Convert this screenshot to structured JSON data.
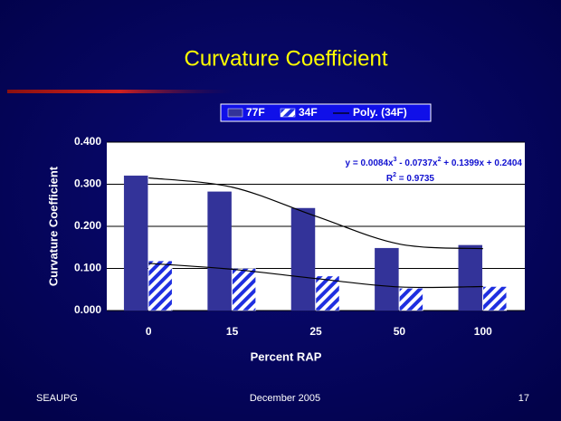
{
  "chart_data": {
    "type": "bar",
    "title": "Curvature Coefficient",
    "x_label": "Percent RAP",
    "y_label": "Curvature Coefficient",
    "categories": [
      "0",
      "15",
      "25",
      "50",
      "100"
    ],
    "series": [
      {
        "name": "77F",
        "color": "#333399",
        "values": [
          0.32,
          0.282,
          0.243,
          0.148,
          0.155
        ]
      },
      {
        "name": "34F",
        "color": "#1f2fe0",
        "pattern": "hatch",
        "values": [
          0.118,
          0.1,
          0.082,
          0.053,
          0.057
        ]
      }
    ],
    "trendlines": [
      {
        "color": "#000000",
        "values": [
          0.315,
          0.293,
          0.224,
          0.158,
          0.147
        ]
      },
      {
        "name": "Poly. (34F)",
        "color": "#000000",
        "values": [
          0.112,
          0.098,
          0.076,
          0.056,
          0.057
        ]
      }
    ],
    "equation": [
      "y = 0.0084x",
      "3",
      " - 0.0737x",
      "2",
      " + 0.1399x + 0.2404"
    ],
    "r_squared": [
      "R",
      "2",
      " = 0.9735"
    ],
    "ylim": [
      0,
      0.4
    ],
    "yticks": [
      {
        "value": 0,
        "label": "0.000"
      },
      {
        "value": 0.1,
        "label": "0.100"
      },
      {
        "value": 0.2,
        "label": "0.200"
      },
      {
        "value": 0.3,
        "label": "0.300"
      },
      {
        "value": 0.4,
        "label": "0.400"
      }
    ],
    "grid": true,
    "legend": "top"
  },
  "footer": {
    "left": "SEAUPG",
    "center": "December 2005",
    "right": "17"
  }
}
